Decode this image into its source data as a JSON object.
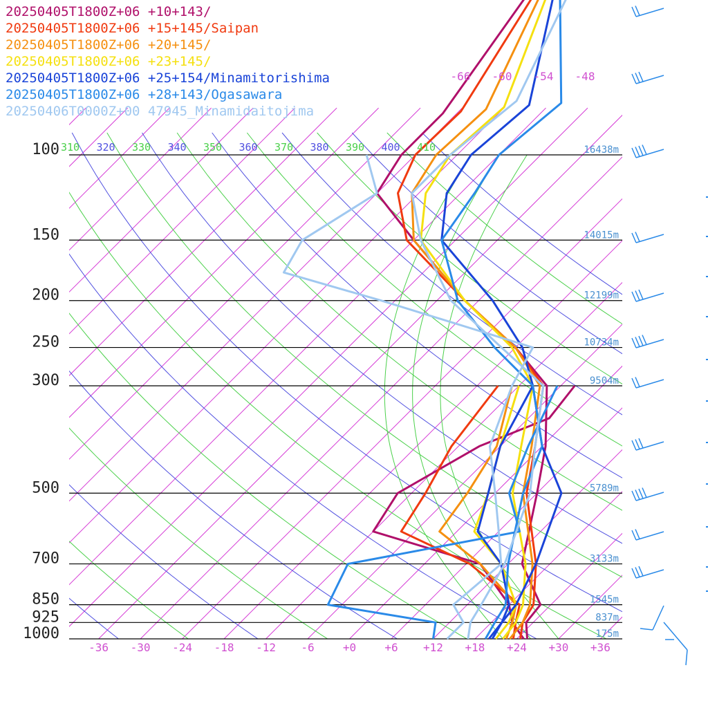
{
  "chart_data": {
    "type": "line",
    "title": "",
    "xlabel": "",
    "ylabel": "",
    "xlim": [
      -40,
      40
    ],
    "ylim": [
      1000,
      100
    ],
    "y_scale": "log",
    "pressure_levels": [
      {
        "p": 100,
        "label": "100",
        "height": "16438m"
      },
      {
        "p": 150,
        "label": "150",
        "height": "14015m"
      },
      {
        "p": 200,
        "label": "200",
        "height": "12199m"
      },
      {
        "p": 250,
        "label": "250",
        "height": "10734m"
      },
      {
        "p": 300,
        "label": "300",
        "height": "9504m"
      },
      {
        "p": 500,
        "label": "500",
        "height": "5789m"
      },
      {
        "p": 700,
        "label": "700",
        "height": "3133m"
      },
      {
        "p": 850,
        "label": "850",
        "height": "1545m"
      },
      {
        "p": 925,
        "label": "925",
        "height": "837m"
      },
      {
        "p": 1000,
        "label": "1000",
        "height": "175m"
      }
    ],
    "temperature_ticks": [
      {
        "t": -36,
        "label": "-36"
      },
      {
        "t": -30,
        "label": "-30"
      },
      {
        "t": -24,
        "label": "-24"
      },
      {
        "t": -18,
        "label": "-18"
      },
      {
        "t": -12,
        "label": "-12"
      },
      {
        "t": -6,
        "label": "-6"
      },
      {
        "t": 0,
        "label": "+0"
      },
      {
        "t": 6,
        "label": "+6"
      },
      {
        "t": 12,
        "label": "+12"
      },
      {
        "t": 18,
        "label": "+18"
      },
      {
        "t": 24,
        "label": "+24"
      },
      {
        "t": 30,
        "label": "+30"
      },
      {
        "t": 36,
        "label": "+36"
      }
    ],
    "top_temperature_labels": [
      "-66",
      "-60",
      "-54",
      "-48"
    ],
    "theta_labels": [
      {
        "value": "310",
        "color": "#4ad04a"
      },
      {
        "value": "320",
        "color": "#5050e0"
      },
      {
        "value": "330",
        "color": "#4ad04a"
      },
      {
        "value": "340",
        "color": "#5050e0"
      },
      {
        "value": "350",
        "color": "#4ad04a"
      },
      {
        "value": "360",
        "color": "#5050e0"
      },
      {
        "value": "370",
        "color": "#4ad04a"
      },
      {
        "value": "380",
        "color": "#5050e0"
      },
      {
        "value": "390",
        "color": "#4ad04a"
      },
      {
        "value": "400",
        "color": "#5050e0"
      },
      {
        "value": "410",
        "color": "#4ad04a"
      }
    ],
    "series": [
      {
        "name": "20250405T1800Z+06 +10+143/",
        "color": "#b0106a",
        "temperature": [
          [
            1000,
            25.5
          ],
          [
            925,
            23
          ],
          [
            850,
            22.5
          ],
          [
            700,
            14
          ],
          [
            500,
            6
          ],
          [
            400,
            0.5
          ],
          [
            300,
            -8
          ],
          [
            250,
            -18
          ],
          [
            200,
            -32
          ],
          [
            150,
            -48
          ],
          [
            120,
            -60
          ],
          [
            100,
            -62
          ]
        ],
        "dewpoint": [
          [
            1000,
            25
          ],
          [
            925,
            21
          ],
          [
            850,
            18
          ],
          [
            700,
            8
          ],
          [
            600,
            -12
          ],
          [
            500,
            -14
          ],
          [
            400,
            -9
          ],
          [
            350,
            -3
          ],
          [
            300,
            -4
          ]
        ]
      },
      {
        "name": "20250405T1800Z+06 +15+145/Saipan",
        "color": "#f03a10",
        "temperature": [
          [
            1000,
            24.5
          ],
          [
            925,
            22.5
          ],
          [
            850,
            21.5
          ],
          [
            700,
            16
          ],
          [
            500,
            4.5
          ],
          [
            400,
            -1
          ],
          [
            300,
            -8.5
          ],
          [
            250,
            -18
          ],
          [
            200,
            -32
          ],
          [
            150,
            -49
          ],
          [
            120,
            -57
          ],
          [
            100,
            -60
          ]
        ],
        "dewpoint": [
          [
            1000,
            23.5
          ],
          [
            925,
            21.5
          ],
          [
            850,
            19.5
          ],
          [
            700,
            6.5
          ],
          [
            600,
            -8
          ],
          [
            500,
            -10
          ],
          [
            400,
            -13
          ],
          [
            300,
            -15
          ]
        ]
      },
      {
        "name": "20250405T1800Z+06 +20+145/",
        "color": "#f59010",
        "temperature": [
          [
            1000,
            23
          ],
          [
            925,
            22.5
          ],
          [
            850,
            21
          ],
          [
            700,
            15.5
          ],
          [
            500,
            4
          ],
          [
            400,
            -1.5
          ],
          [
            300,
            -9
          ],
          [
            250,
            -18
          ],
          [
            200,
            -32
          ],
          [
            150,
            -48
          ],
          [
            120,
            -55
          ],
          [
            100,
            -57
          ]
        ],
        "dewpoint": [
          [
            1000,
            22.5
          ],
          [
            925,
            21
          ],
          [
            850,
            19
          ],
          [
            700,
            8
          ],
          [
            600,
            -2.5
          ],
          [
            500,
            -4
          ],
          [
            400,
            -6.5
          ],
          [
            300,
            -13
          ]
        ]
      },
      {
        "name": "20250405T1800Z+06 +23+145/",
        "color": "#f5e010",
        "temperature": [
          [
            1000,
            22
          ],
          [
            925,
            21.5
          ],
          [
            850,
            20
          ],
          [
            700,
            14.5
          ],
          [
            500,
            2.5
          ],
          [
            400,
            -3
          ],
          [
            300,
            -10
          ],
          [
            250,
            -18.5
          ],
          [
            200,
            -32
          ],
          [
            150,
            -47
          ],
          [
            120,
            -53
          ],
          [
            100,
            -55
          ]
        ],
        "dewpoint": [
          [
            1000,
            21
          ],
          [
            925,
            20.5
          ],
          [
            850,
            19
          ],
          [
            700,
            11
          ],
          [
            600,
            2.5
          ],
          [
            500,
            -1
          ],
          [
            400,
            -6
          ],
          [
            300,
            -12
          ]
        ]
      },
      {
        "name": "20250405T1800Z+06 +25+154/Minamitorishima",
        "color": "#1a44d8",
        "temperature": [
          [
            1000,
            20.5
          ],
          [
            925,
            19.5
          ],
          [
            850,
            19
          ],
          [
            700,
            16
          ],
          [
            500,
            9.5
          ],
          [
            400,
            0
          ],
          [
            300,
            -10
          ],
          [
            250,
            -17
          ],
          [
            200,
            -28
          ],
          [
            150,
            -44
          ],
          [
            120,
            -50
          ],
          [
            100,
            -52
          ]
        ],
        "dewpoint": [
          [
            1000,
            20
          ],
          [
            925,
            19.5
          ],
          [
            850,
            18
          ],
          [
            700,
            11
          ],
          [
            600,
            3
          ],
          [
            500,
            -1
          ],
          [
            400,
            -6
          ],
          [
            300,
            -10
          ]
        ]
      },
      {
        "name": "20250405T1800Z+06 +28+143/Ogasawara",
        "color": "#2a8ae8",
        "temperature": [
          [
            1000,
            19.5
          ],
          [
            925,
            18.5
          ],
          [
            850,
            17.5
          ],
          [
            700,
            12
          ],
          [
            500,
            4
          ],
          [
            400,
            0
          ],
          [
            300,
            -10
          ],
          [
            250,
            -21
          ],
          [
            200,
            -33
          ],
          [
            150,
            -44
          ],
          [
            120,
            -46
          ],
          [
            100,
            -48
          ]
        ],
        "dewpoint": [
          [
            1000,
            12
          ],
          [
            925,
            10
          ],
          [
            850,
            -8
          ],
          [
            700,
            -11
          ],
          [
            600,
            9
          ],
          [
            500,
            2
          ],
          [
            400,
            -2
          ],
          [
            300,
            -6.5
          ]
        ]
      },
      {
        "name": "20250406T0000Z+00 47945_Minamidaitojima",
        "color": "#a0c8f0",
        "temperature": [
          [
            1000,
            17
          ],
          [
            925,
            15
          ],
          [
            850,
            14
          ],
          [
            700,
            11.5
          ],
          [
            500,
            5
          ],
          [
            400,
            -1
          ],
          [
            300,
            -8.5
          ],
          [
            250,
            -20
          ],
          [
            200,
            -34
          ],
          [
            150,
            -47
          ],
          [
            120,
            -55
          ],
          [
            100,
            -55
          ]
        ],
        "dewpoint": [
          [
            1000,
            14
          ],
          [
            925,
            14
          ],
          [
            850,
            10
          ],
          [
            700,
            11
          ],
          [
            600,
            6
          ],
          [
            500,
            0
          ],
          [
            400,
            -7.5
          ],
          [
            300,
            -13
          ],
          [
            250,
            -15.5
          ],
          [
            200,
            -44
          ],
          [
            175,
            -62
          ],
          [
            150,
            -64
          ],
          [
            120,
            -60
          ],
          [
            100,
            -67
          ]
        ]
      }
    ]
  }
}
